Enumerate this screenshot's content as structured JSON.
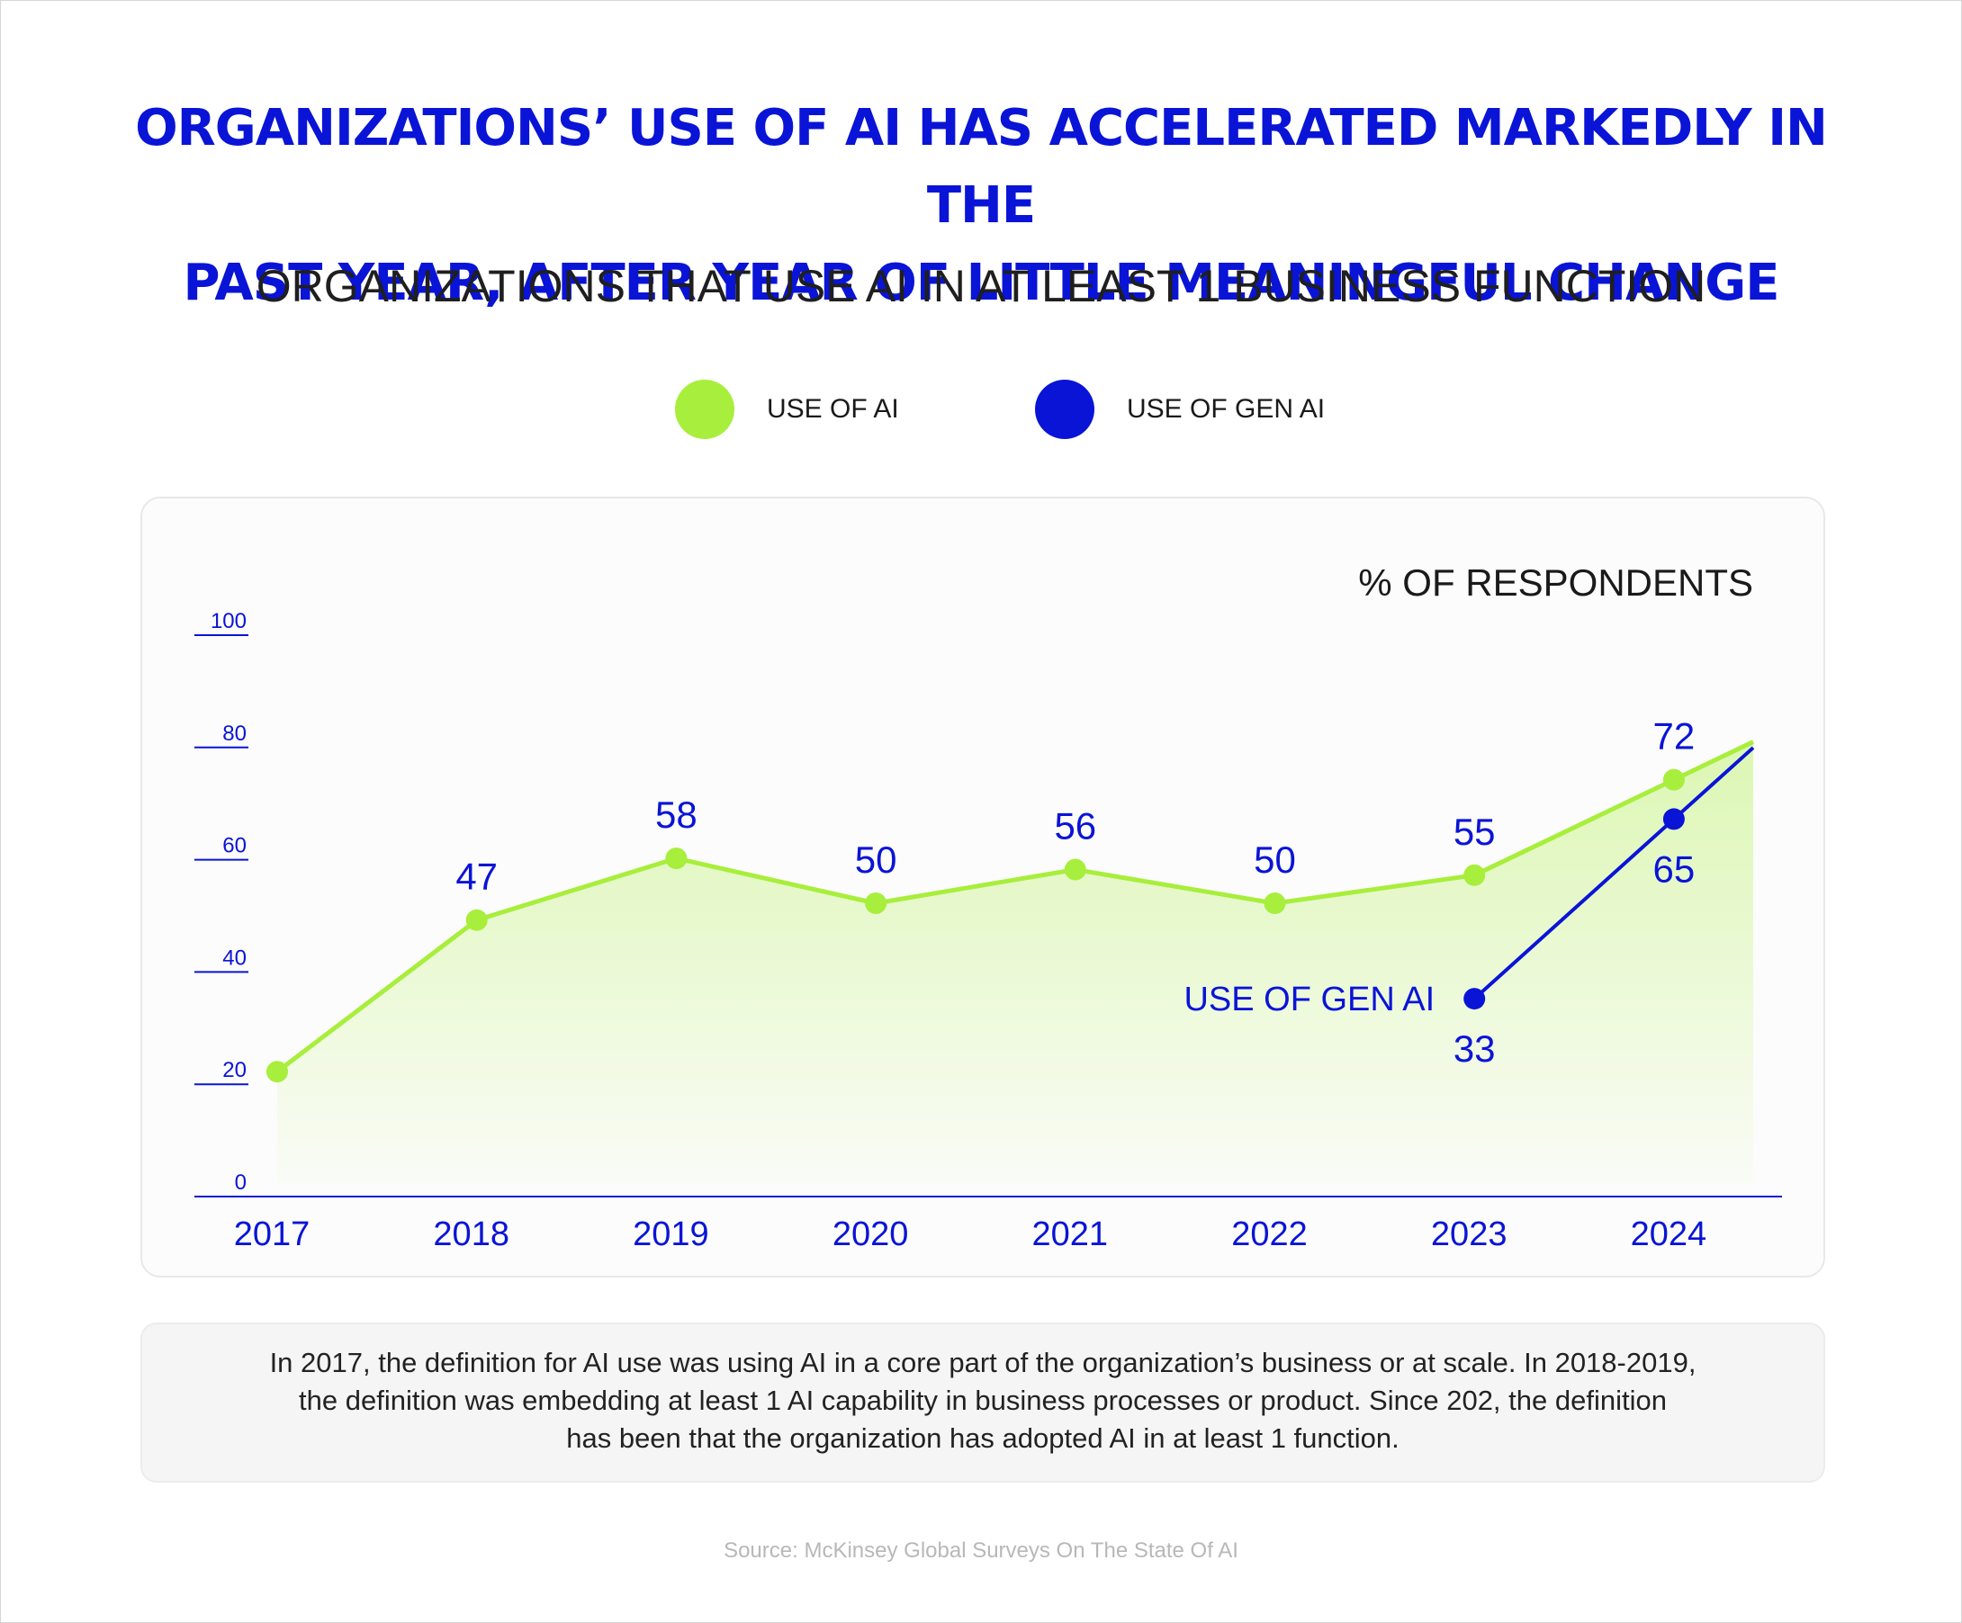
{
  "header": {
    "title_line1": "ORGANIZATIONS’ USE OF AI HAS ACCELERATED MARKEDLY IN THE",
    "title_line2": "PAST YEAR, AFTER YEAR OF LITTLE MEANINGFUL CHANGE",
    "subtitle": "ORGANIZATIONS THAT USE AI IN AT LEAST 1 BUSINESS FUNCTION"
  },
  "legend": [
    {
      "label": "USE OF AI",
      "color": "#a8ee3c"
    },
    {
      "label": "USE OF GEN AI",
      "color": "#0a14d6"
    }
  ],
  "chart_data": {
    "type": "line",
    "ylabel": "% OF RESPONDENTS",
    "x": [
      "2017",
      "2018",
      "2019",
      "2020",
      "2021",
      "2022",
      "2023",
      "2024"
    ],
    "ylim": [
      0,
      100
    ],
    "yticks": [
      0,
      20,
      40,
      60,
      80,
      100
    ],
    "series": [
      {
        "name": "USE OF AI",
        "color": "#a8ee3c",
        "values": [
          20,
          47,
          58,
          50,
          56,
          50,
          55,
          72
        ],
        "labels": [
          "",
          "47",
          "58",
          "50",
          "56",
          "50",
          "55",
          "72"
        ]
      },
      {
        "name": "USE OF GEN AI",
        "color": "#0a14d6",
        "values": [
          null,
          null,
          null,
          null,
          null,
          null,
          33,
          65
        ],
        "labels": [
          "",
          "",
          "",
          "",
          "",
          "",
          "33",
          "65"
        ]
      }
    ],
    "annotation": "USE OF GEN AI",
    "grid": false
  },
  "note": {
    "line1": "In 2017, the definition for AI use was using AI in a core part of the organization’s business or at scale. In 2018-2019,",
    "line2": "the definition was embedding at least 1 AI capability in business processes or product. Since 202, the definition",
    "line3": "has been that the organization has adopted AI in at least 1 function."
  },
  "source": "Source: McKinsey Global Surveys On The State Of AI"
}
